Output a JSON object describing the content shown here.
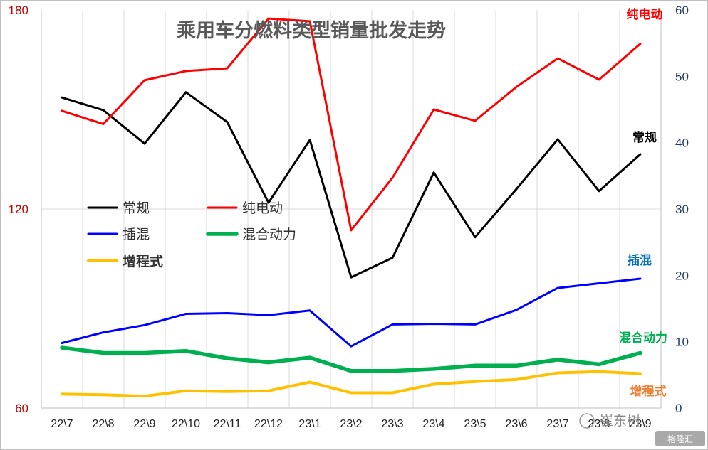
{
  "chart_data": {
    "type": "line",
    "title": "乘用车分燃料类型销量批发走势",
    "categories": [
      "22\\7",
      "22\\8",
      "22\\9",
      "22\\10",
      "22\\11",
      "22\\12",
      "23\\1",
      "23\\2",
      "23\\3",
      "23\\4",
      "23\\5",
      "23\\6",
      "23\\7",
      "23\\8",
      "23\\9"
    ],
    "left_axis": {
      "min": 60,
      "max": 180,
      "ticks": [
        "60",
        "120",
        "180"
      ],
      "color": "#c00000"
    },
    "right_axis": {
      "min": 0,
      "max": 60,
      "ticks": [
        "0",
        "10",
        "20",
        "30",
        "40",
        "50",
        "60"
      ],
      "color": "#1f3864"
    },
    "grid": "vertical",
    "legend_placement": "center-left",
    "series": [
      {
        "name": "常规",
        "axis": "left",
        "color": "#000000",
        "width": 3,
        "values": [
          153.6,
          149.8,
          139.7,
          155.2,
          146.2,
          121.9,
          140.8,
          99.4,
          105.3,
          131.0,
          111.5,
          126.0,
          141.0,
          125.4,
          136.5
        ]
      },
      {
        "name": "纯电动",
        "axis": "right",
        "color": "#ff0000",
        "width": 3,
        "values": [
          44.8,
          42.8,
          49.4,
          50.8,
          51.2,
          58.7,
          58.3,
          26.8,
          34.7,
          45.0,
          43.3,
          48.4,
          52.7,
          49.5,
          54.9
        ]
      },
      {
        "name": "插混",
        "axis": "right",
        "color": "#0000ff",
        "width": 3,
        "values": [
          9.8,
          11.4,
          12.5,
          14.2,
          14.3,
          14.0,
          14.7,
          9.3,
          12.6,
          12.7,
          12.6,
          14.8,
          18.1,
          18.8,
          19.5
        ]
      },
      {
        "name": "混合动力",
        "axis": "right",
        "color": "#00b050",
        "width": 5.5,
        "values": [
          9.1,
          8.3,
          8.3,
          8.6,
          7.5,
          6.9,
          7.6,
          5.6,
          5.6,
          5.9,
          6.4,
          6.4,
          7.3,
          6.6,
          8.3
        ]
      },
      {
        "name": "增程式",
        "axis": "right",
        "color": "#ffc000",
        "width": 4,
        "values": [
          2.1,
          2.0,
          1.8,
          2.6,
          2.5,
          2.6,
          3.9,
          2.3,
          2.3,
          3.6,
          4.0,
          4.3,
          5.3,
          5.5,
          5.2
        ]
      }
    ],
    "series_labels": [
      {
        "text": "纯电动",
        "color": "#ff0000"
      },
      {
        "text": "常规",
        "color": "#000000"
      },
      {
        "text": "插混",
        "color": "#0070c0"
      },
      {
        "text": "混合动力",
        "color": "#00b050"
      },
      {
        "text": "增程式",
        "color": "#ed7d31"
      }
    ]
  },
  "watermark": {
    "text": "崔东树",
    "badge": "格隆汇"
  }
}
